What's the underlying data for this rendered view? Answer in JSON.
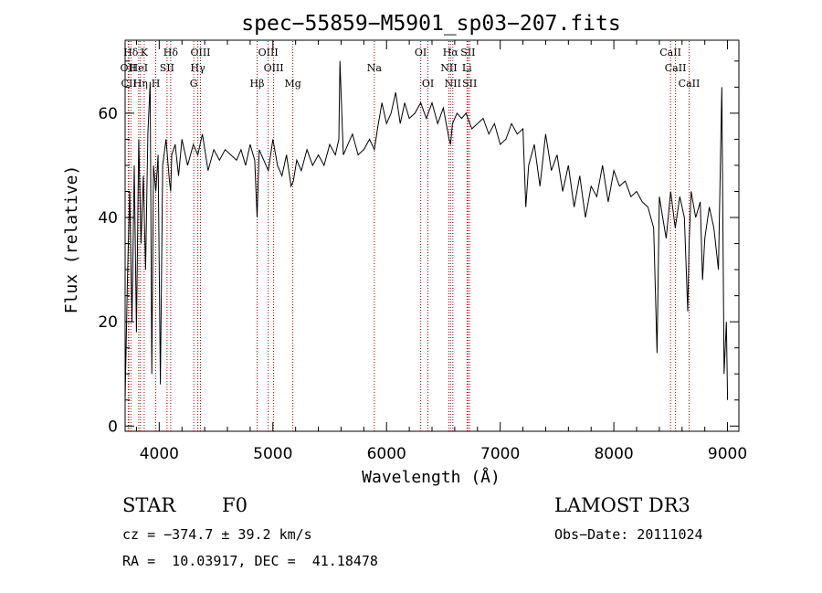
{
  "chart_data": {
    "type": "line",
    "title": "spec−55859−M5901_sp03−207.fits",
    "xlabel": "Wavelength (Å)",
    "ylabel": "Flux (relative)",
    "xlim": [
      3700,
      9100
    ],
    "ylim": [
      -1,
      74
    ],
    "xticks": [
      4000,
      5000,
      6000,
      7000,
      8000,
      9000
    ],
    "yticks": [
      0,
      20,
      40,
      60
    ],
    "series": [
      {
        "name": "spectrum",
        "x": [
          3700,
          3720,
          3740,
          3760,
          3780,
          3800,
          3820,
          3840,
          3860,
          3880,
          3900,
          3920,
          3935,
          3950,
          3970,
          3990,
          4010,
          4030,
          4060,
          4090,
          4101,
          4110,
          4140,
          4170,
          4200,
          4250,
          4300,
          4340,
          4380,
          4430,
          4480,
          4530,
          4580,
          4630,
          4680,
          4720,
          4760,
          4800,
          4840,
          4861,
          4880,
          4920,
          4960,
          5000,
          5040,
          5080,
          5120,
          5160,
          5180,
          5210,
          5250,
          5300,
          5350,
          5400,
          5450,
          5500,
          5550,
          5580,
          5590,
          5620,
          5660,
          5700,
          5750,
          5800,
          5850,
          5893,
          5920,
          5960,
          6000,
          6040,
          6080,
          6120,
          6160,
          6200,
          6250,
          6300,
          6350,
          6400,
          6450,
          6500,
          6550,
          6563,
          6580,
          6620,
          6660,
          6700,
          6750,
          6800,
          6850,
          6900,
          6950,
          7000,
          7050,
          7100,
          7150,
          7200,
          7225,
          7250,
          7300,
          7350,
          7400,
          7450,
          7500,
          7550,
          7600,
          7650,
          7700,
          7750,
          7800,
          7850,
          7900,
          7950,
          8000,
          8050,
          8100,
          8150,
          8200,
          8250,
          8300,
          8350,
          8380,
          8400,
          8430,
          8460,
          8500,
          8540,
          8580,
          8620,
          8650,
          8662,
          8680,
          8720,
          8760,
          8780,
          8800,
          8840,
          8880,
          8920,
          8950,
          8970,
          8990,
          9000
        ],
        "values": [
          5,
          28,
          45,
          20,
          50,
          18,
          55,
          35,
          48,
          30,
          56,
          66,
          10,
          50,
          45,
          52,
          8,
          50,
          55,
          47,
          45,
          52,
          54,
          48,
          55,
          50,
          54,
          52,
          56,
          49,
          53,
          51,
          53,
          52,
          51,
          53,
          50,
          54,
          51,
          40,
          53,
          51,
          49,
          55,
          50,
          48,
          52,
          46,
          47,
          51,
          49,
          53,
          50,
          52,
          50,
          54,
          52,
          55,
          70,
          52,
          54,
          56,
          52,
          53,
          55,
          53,
          57,
          62,
          58,
          60,
          64,
          58,
          62,
          59,
          60,
          62,
          59,
          62,
          58,
          61,
          55,
          54,
          58,
          60,
          59,
          60,
          57,
          58,
          59,
          56,
          58,
          54,
          55,
          58,
          56,
          57,
          42,
          50,
          54,
          46,
          56,
          49,
          52,
          45,
          50,
          42,
          48,
          40,
          46,
          44,
          50,
          43,
          49,
          46,
          47,
          44,
          45,
          43,
          42,
          38,
          14,
          44,
          40,
          36,
          45,
          38,
          44,
          40,
          22,
          35,
          45,
          40,
          43,
          28,
          36,
          42,
          38,
          30,
          65,
          10,
          20,
          5
        ]
      }
    ],
    "lines": [
      {
        "label": "Hδ",
        "w": 3751,
        "row": 0
      },
      {
        "label": "K",
        "w": 3868,
        "row": 0
      },
      {
        "label": "Hδ",
        "w": 4101,
        "row": 0
      },
      {
        "label": "OIII",
        "w": 4363,
        "row": 0
      },
      {
        "label": "OIII",
        "w": 4959,
        "row": 0
      },
      {
        "label": "OI",
        "w": 6300,
        "row": 0
      },
      {
        "label": "Hα",
        "w": 6563,
        "row": 0
      },
      {
        "label": "SII",
        "w": 6717,
        "row": 0
      },
      {
        "label": "CaII",
        "w": 8498,
        "row": 0
      },
      {
        "label": "OII",
        "w": 3727,
        "row": 1
      },
      {
        "label": "HeI",
        "w": 3820,
        "row": 1
      },
      {
        "label": "SII",
        "w": 4069,
        "row": 1
      },
      {
        "label": "Hγ",
        "w": 4340,
        "row": 1
      },
      {
        "label": "OIII",
        "w": 5007,
        "row": 1
      },
      {
        "label": "NII",
        "w": 6548,
        "row": 1
      },
      {
        "label": "Li",
        "w": 6708,
        "row": 1
      },
      {
        "label": "CaII",
        "w": 8542,
        "row": 1
      },
      {
        "label": "CII",
        "w": 3733,
        "row": 2
      },
      {
        "label": "Hη",
        "w": 3835,
        "row": 2
      },
      {
        "label": "H",
        "w": 3969,
        "row": 2
      },
      {
        "label": "G",
        "w": 4304,
        "row": 2
      },
      {
        "label": "Hβ",
        "w": 4861,
        "row": 2
      },
      {
        "label": "Mg",
        "w": 5175,
        "row": 2
      },
      {
        "label": "OI",
        "w": 6364,
        "row": 2
      },
      {
        "label": "NII",
        "w": 6583,
        "row": 2
      },
      {
        "label": "SII",
        "w": 6731,
        "row": 2
      },
      {
        "label": "CaII",
        "w": 8662,
        "row": 2
      },
      {
        "label": "Na",
        "w": 5893,
        "row": 1
      }
    ]
  },
  "info": {
    "class": "STAR",
    "subclass": "F0",
    "survey": "LAMOST DR3",
    "cz": "cz = −374.7 ± 39.2 km/s",
    "obsdate": "Obs−Date: 20111024",
    "radec": "RA =  10.03917, DEC =  41.18478"
  },
  "colors": {
    "line_marker": "#aa0000",
    "ink": "#000000"
  }
}
